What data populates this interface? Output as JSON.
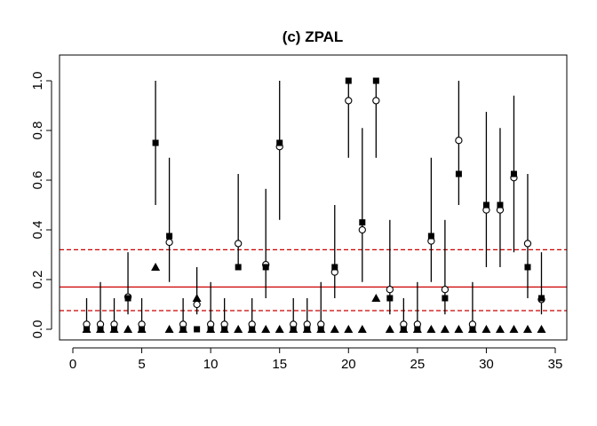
{
  "chart_data": {
    "type": "scatter",
    "title": "(c) ZPAL",
    "xlabel": "",
    "ylabel": "",
    "xlim": [
      0,
      35
    ],
    "ylim": [
      0,
      1
    ],
    "x_ticks": [
      0,
      5,
      10,
      15,
      20,
      25,
      30,
      35
    ],
    "y_ticks": [
      0.0,
      0.2,
      0.4,
      0.6,
      0.8,
      1.0
    ],
    "x_tick_labels": [
      "0",
      "5",
      "10",
      "15",
      "20",
      "25",
      "30",
      "35"
    ],
    "y_tick_labels": [
      "0.0",
      "0.2",
      "0.4",
      "0.6",
      "0.8",
      "1.0"
    ],
    "grid": false,
    "colors": {
      "points": "#000000",
      "reference": "#cc0000"
    },
    "reference_lines": {
      "center": 0.17,
      "lower": 0.075,
      "upper": 0.32
    },
    "x": [
      1,
      2,
      3,
      4,
      5,
      6,
      7,
      8,
      9,
      10,
      11,
      12,
      13,
      14,
      15,
      16,
      17,
      18,
      19,
      20,
      21,
      22,
      23,
      24,
      25,
      26,
      27,
      28,
      29,
      30,
      31,
      32,
      33,
      34
    ],
    "squares": [
      0,
      0,
      0,
      0.125,
      0,
      0.75,
      0.375,
      0,
      0,
      0,
      0,
      0.25,
      0,
      0.25,
      0.75,
      0,
      0,
      0,
      0.25,
      1.0,
      0.43,
      1.0,
      0.125,
      0,
      0,
      0.375,
      0.125,
      0.625,
      0,
      0.5,
      0.5,
      0.625,
      0.25,
      0.125
    ],
    "circles": [
      0.02,
      0.02,
      0.02,
      0.13,
      0.02,
      null,
      0.35,
      0.02,
      0.1,
      0.02,
      0.02,
      0.345,
      0.02,
      0.26,
      0.735,
      0.02,
      0.02,
      0.02,
      0.23,
      0.92,
      0.4,
      0.92,
      0.16,
      0.02,
      0.02,
      0.355,
      0.16,
      0.76,
      0.02,
      0.48,
      0.48,
      0.61,
      0.345,
      0.12
    ],
    "triangles": [
      0,
      0,
      0,
      0,
      0,
      0.25,
      0,
      0,
      0.125,
      0,
      0,
      0,
      0,
      0,
      0,
      0,
      0,
      0,
      0,
      0,
      0,
      0.125,
      0,
      0,
      0,
      0,
      0,
      0,
      0,
      0,
      0,
      0,
      0,
      0
    ],
    "intervals": [
      [
        0,
        0.125
      ],
      [
        0,
        0.19
      ],
      [
        0,
        0.125
      ],
      [
        0.06,
        0.31
      ],
      [
        0,
        0.125
      ],
      [
        0.5,
        1.0
      ],
      [
        0.19,
        0.69
      ],
      [
        0,
        0.125
      ],
      [
        0.06,
        0.25
      ],
      [
        0,
        0.19
      ],
      [
        0,
        0.125
      ],
      [
        0.25,
        0.625
      ],
      [
        0,
        0.125
      ],
      [
        0.125,
        0.565
      ],
      [
        0.44,
        1.0
      ],
      [
        0,
        0.125
      ],
      [
        0,
        0.125
      ],
      [
        0,
        0.19
      ],
      [
        0.125,
        0.5
      ],
      [
        0.69,
        1.0
      ],
      [
        0.19,
        0.81
      ],
      [
        0.69,
        1.0
      ],
      [
        0.06,
        0.44
      ],
      [
        0,
        0.125
      ],
      [
        0,
        0.19
      ],
      [
        0.19,
        0.69
      ],
      [
        0.06,
        0.44
      ],
      [
        0.5,
        1.0
      ],
      [
        0,
        0.19
      ],
      [
        0.25,
        0.875
      ],
      [
        0.25,
        0.81
      ],
      [
        0.31,
        0.94
      ],
      [
        0.125,
        0.625
      ],
      [
        0.06,
        0.31
      ]
    ]
  }
}
